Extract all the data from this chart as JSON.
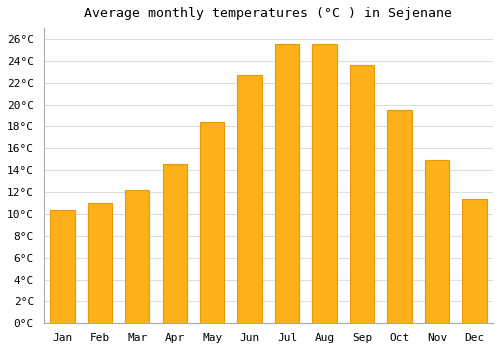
{
  "title": "Average monthly temperatures (°C ) in Sejenane",
  "months": [
    "Jan",
    "Feb",
    "Mar",
    "Apr",
    "May",
    "Jun",
    "Jul",
    "Aug",
    "Sep",
    "Oct",
    "Nov",
    "Dec"
  ],
  "values": [
    10.4,
    11.0,
    12.2,
    14.6,
    18.4,
    22.7,
    25.5,
    25.5,
    23.6,
    19.5,
    14.9,
    11.4
  ],
  "bar_color": "#FBB117",
  "bar_edge_color": "#E8980A",
  "background_color": "#FFFFFF",
  "grid_color": "#DDDDDD",
  "ylim": [
    0,
    27
  ],
  "ytick_step": 2,
  "title_fontsize": 9.5,
  "tick_fontsize": 8,
  "font_family": "monospace"
}
